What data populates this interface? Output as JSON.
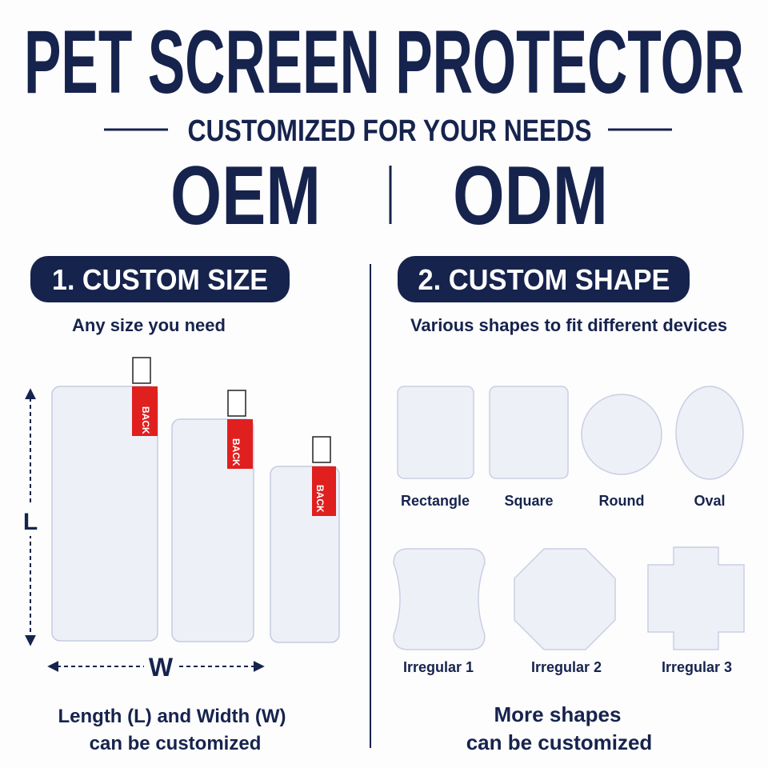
{
  "header": {
    "title": "PET SCREEN PROTECTOR",
    "subtitle": "CUSTOMIZED FOR YOUR NEEDS",
    "left": "OEM",
    "right": "ODM"
  },
  "size": {
    "heading": "1. CUSTOM SIZE",
    "caption": "Any size you need",
    "length": "L",
    "width": "W",
    "tab": "BACK",
    "footer": [
      "Length (L) and Width (W)",
      "can be customized"
    ]
  },
  "shape": {
    "heading": "2. CUSTOM SHAPE",
    "caption": "Various shapes to fit different devices",
    "shapes": [
      "Rectangle",
      "Square",
      "Round",
      "Oval",
      "Irregular 1",
      "Irregular 2",
      "Irregular 3"
    ],
    "footer": [
      "More shapes",
      "can be customized"
    ]
  }
}
